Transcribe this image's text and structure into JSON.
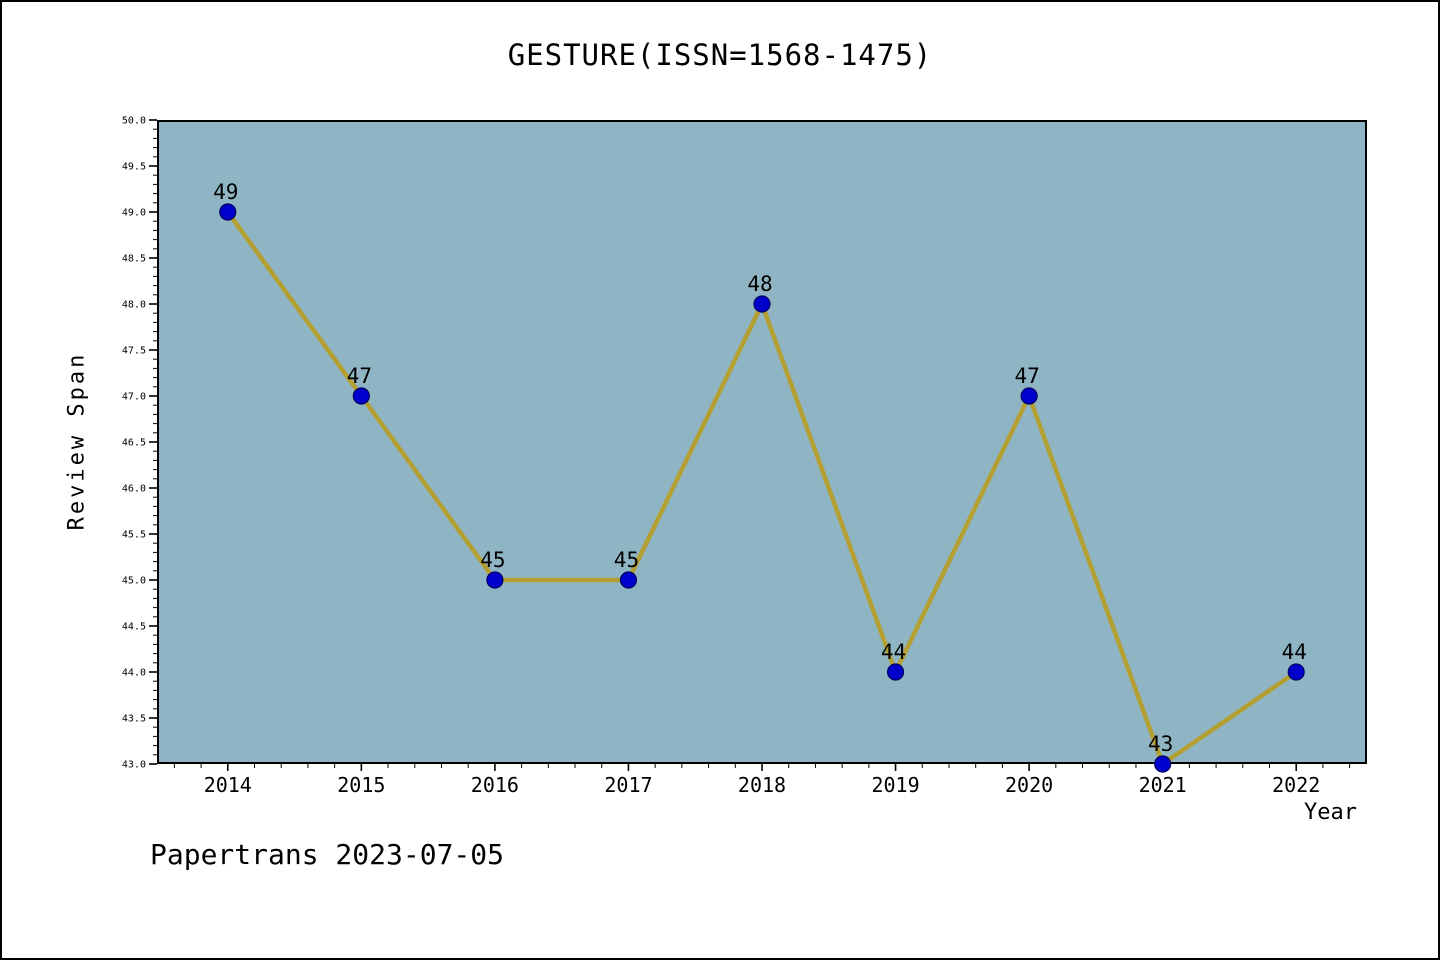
{
  "title": "GESTURE(ISSN=1568-1475)",
  "footer": "Papertrans 2023-07-05",
  "chart_data": {
    "type": "line",
    "title": "GESTURE(ISSN=1568-1475)",
    "xlabel": "Year",
    "ylabel": "Review Span",
    "x": [
      2014,
      2015,
      2016,
      2017,
      2018,
      2019,
      2020,
      2021,
      2022
    ],
    "values": [
      49,
      47,
      45,
      45,
      48,
      44,
      47,
      43,
      44
    ],
    "point_labels": [
      "49",
      "47",
      "45",
      "45",
      "48",
      "44",
      "47",
      "43",
      "44"
    ],
    "x_tick_labels": [
      "2014",
      "2015",
      "2016",
      "2017",
      "2018",
      "2019",
      "2020",
      "2021",
      "2022"
    ],
    "y_major_ticks": [
      43.0,
      43.5,
      44.0,
      44.5,
      45.0,
      45.5,
      46.0,
      46.5,
      47.0,
      47.5,
      48.0,
      48.5,
      49.0,
      49.5,
      50.0
    ],
    "xlim": [
      2013.47,
      2022.53
    ],
    "ylim": [
      43.0,
      50.0
    ],
    "y_major_step": 0.5,
    "y_minor_step": 0.1,
    "x_minor_step": 0.2,
    "grid": false,
    "legend": null,
    "colors": {
      "plot_bg": "#8fb5c4",
      "line": "#b4a032",
      "marker": "#0000cd",
      "marker_edge": "#000060",
      "axis": "#000000",
      "text": "#000000"
    }
  }
}
